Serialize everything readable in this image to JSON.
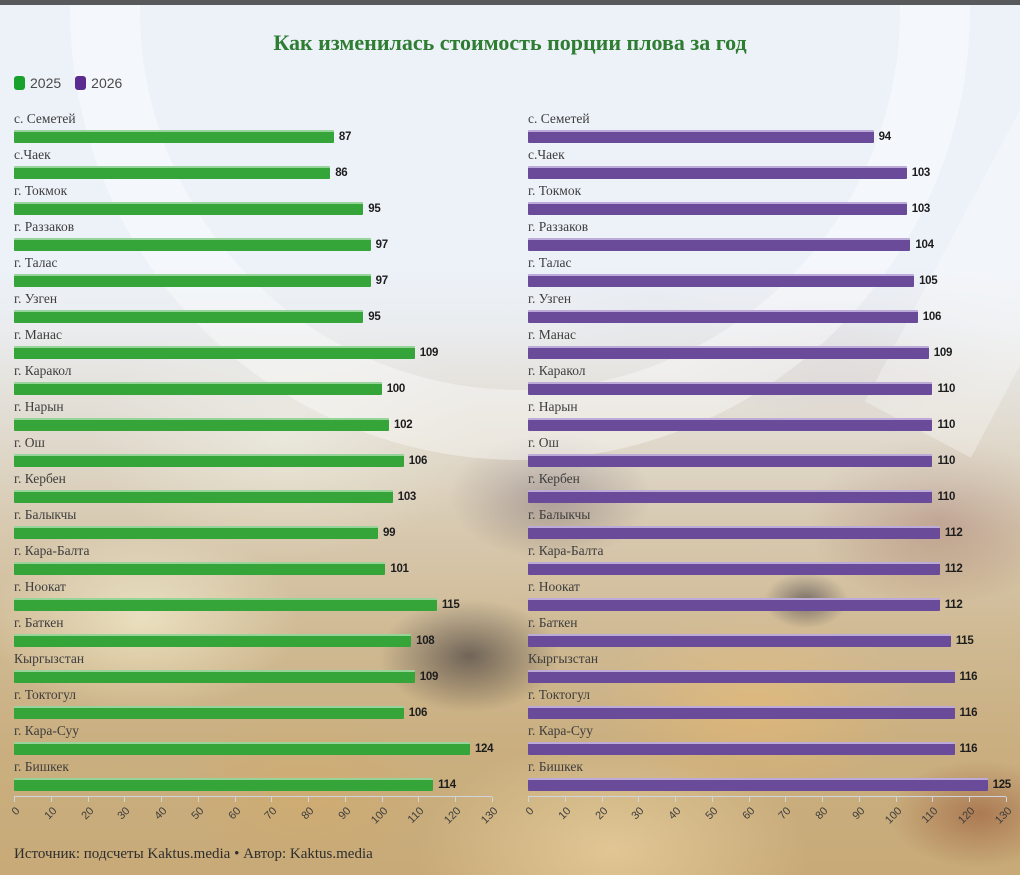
{
  "title": "Как изменилась стоимость порции плова за год",
  "legend": {
    "items": [
      {
        "label": "2025",
        "color": "#18a12b"
      },
      {
        "label": "2026",
        "color": "#5b2b8f"
      }
    ]
  },
  "footer": "Источник: подсчеты Kaktus.media • Автор: Kaktus.media",
  "colors": {
    "background": "#edf2f9",
    "title_green": "#2e7d32",
    "bar_green": "#35a53a",
    "bar_purple": "#6a4b9a",
    "top_strip": "#58595b",
    "axis_line": "#cfd5de",
    "category_text": "#3d3d3d",
    "value_text": "#1d1d1d"
  },
  "chart_data": [
    {
      "type": "bar",
      "orientation": "horizontal",
      "series_name": "2025",
      "bar_color": "#35a53a",
      "bar_class": "green",
      "categories": [
        "с. Семетей",
        "с.Чаек",
        "г. Токмок",
        "г. Раззаков",
        "г. Талас",
        "г. Узген",
        "г. Манас",
        "г. Каракол",
        "г. Нарын",
        "г. Ош",
        "г. Кербен",
        "г. Балыкчы",
        "г. Кара-Балта",
        "г. Ноокат",
        "г. Баткен",
        "Кыргызстан",
        "г. Токтогул",
        "г. Кара-Суу",
        "г. Бишкек"
      ],
      "values": [
        87,
        86,
        95,
        97,
        97,
        95,
        109,
        100,
        102,
        106,
        103,
        99,
        101,
        115,
        108,
        109,
        106,
        124,
        114
      ],
      "xlim": [
        0,
        130
      ],
      "x_ticks": [
        0,
        10,
        20,
        30,
        40,
        50,
        60,
        70,
        80,
        90,
        100,
        110,
        120,
        130
      ],
      "grid": false,
      "value_labels": true
    },
    {
      "type": "bar",
      "orientation": "horizontal",
      "series_name": "2026",
      "bar_color": "#6a4b9a",
      "bar_class": "purple",
      "categories": [
        "с. Семетей",
        "с.Чаек",
        "г. Токмок",
        "г. Раззаков",
        "г. Талас",
        "г. Узген",
        "г. Манас",
        "г. Каракол",
        "г. Нарын",
        "г. Ош",
        "г. Кербен",
        "г. Балыкчы",
        "г. Кара-Балта",
        "г. Ноокат",
        "г. Баткен",
        "Кыргызстан",
        "г. Токтогул",
        "г. Кара-Суу",
        "г. Бишкек"
      ],
      "values": [
        94,
        103,
        103,
        104,
        105,
        106,
        109,
        110,
        110,
        110,
        110,
        112,
        112,
        112,
        115,
        116,
        116,
        116,
        125
      ],
      "xlim": [
        0,
        130
      ],
      "x_ticks": [
        0,
        10,
        20,
        30,
        40,
        50,
        60,
        70,
        80,
        90,
        100,
        110,
        120,
        130
      ],
      "grid": false,
      "value_labels": true
    }
  ]
}
